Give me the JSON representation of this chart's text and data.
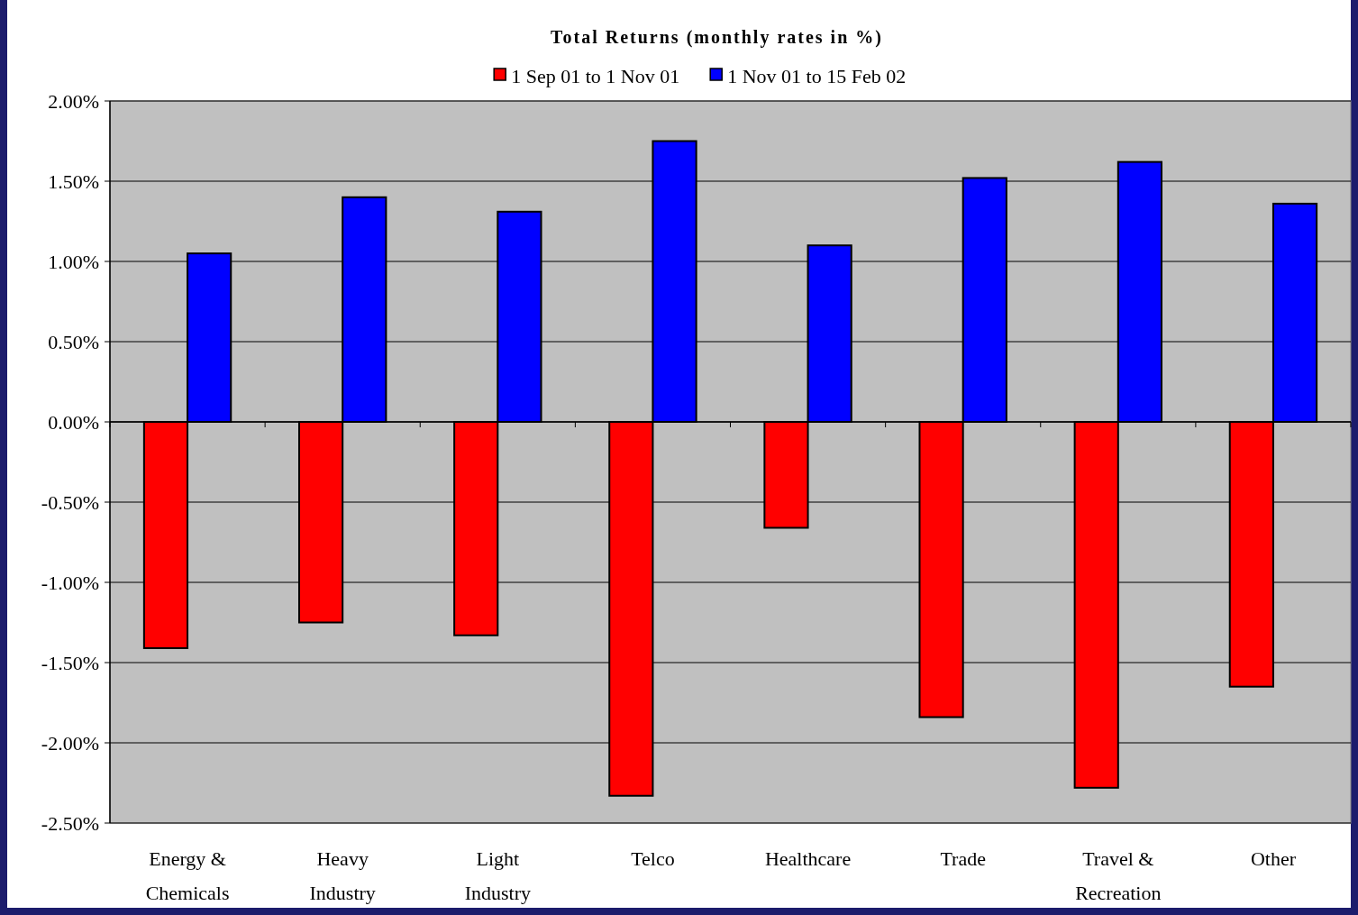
{
  "chart_data": {
    "type": "bar",
    "title": "Total Returns (monthly rates in %)",
    "categories": [
      "Energy & Chemicals",
      "Heavy Industry",
      "Light Industry",
      "Telco",
      "Healthcare",
      "Trade",
      "Travel & Recreation",
      "Other"
    ],
    "series": [
      {
        "name": "1 Sep 01 to 1 Nov 01",
        "color": "#ff0000",
        "values": [
          -1.41,
          -1.25,
          -1.33,
          -2.33,
          -0.66,
          -1.84,
          -2.28,
          -1.65
        ]
      },
      {
        "name": "1 Nov 01 to 15 Feb 02",
        "color": "#0000ff",
        "values": [
          1.05,
          1.4,
          1.31,
          1.75,
          1.1,
          1.52,
          1.62,
          1.36
        ]
      }
    ],
    "ylim": [
      -2.5,
      2
    ],
    "yticks": [
      {
        "value": -2.5,
        "label": "-2.50%"
      },
      {
        "value": -2,
        "label": "-2.00%"
      },
      {
        "value": -1.5,
        "label": "-1.50%"
      },
      {
        "value": -1,
        "label": "-1.00%"
      },
      {
        "value": -0.5,
        "label": "-0.50%"
      },
      {
        "value": 0,
        "label": "0.00%"
      },
      {
        "value": 0.5,
        "label": "0.50%"
      },
      {
        "value": 1,
        "label": "1.00%"
      },
      {
        "value": 1.5,
        "label": "1.50%"
      },
      {
        "value": 2,
        "label": "2.00%"
      }
    ],
    "grid": "y",
    "legend": "top"
  }
}
